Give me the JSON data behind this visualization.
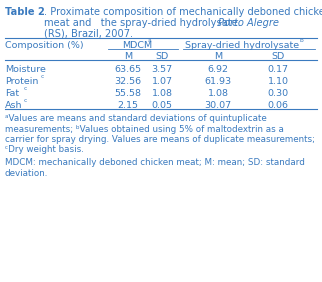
{
  "text_color": "#3a7abf",
  "bg_color": "#ffffff",
  "fontsize": 6.8,
  "footnote_fontsize": 6.3,
  "rows": [
    {
      "label": "Moisture",
      "sup": "",
      "mdcm_m": "63.65",
      "mdcm_sd": "3.57",
      "spray_m": "6.92",
      "spray_sd": "0.17"
    },
    {
      "label": "Protein",
      "sup": "c",
      "mdcm_m": "32.56",
      "mdcm_sd": "1.07",
      "spray_m": "61.93",
      "spray_sd": "1.10"
    },
    {
      "label": "Fat",
      "sup": "c",
      "mdcm_m": "55.58",
      "mdcm_sd": "1.08",
      "spray_m": "1.08",
      "spray_sd": "0.30"
    },
    {
      "label": "Ash",
      "sup": "c",
      "mdcm_m": "2.15",
      "mdcm_sd": "0.05",
      "spray_m": "30.07",
      "spray_sd": "0.06"
    }
  ]
}
